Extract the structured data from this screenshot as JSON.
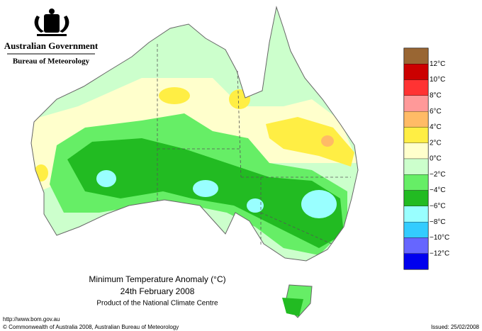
{
  "header": {
    "government": "Australian Government",
    "bureau": "Bureau of Meteorology"
  },
  "title": "Minimum Temperature Anomaly (°C)",
  "date": "24th February 2008",
  "product": "Product of the National Climate Centre",
  "legend": {
    "labels": [
      "12°C",
      "10°C",
      "8°C",
      "6°C",
      "4°C",
      "2°C",
      "0°C",
      "−2°C",
      "−4°C",
      "−6°C",
      "−8°C",
      "−10°C",
      "−12°C"
    ],
    "colors": [
      "#996633",
      "#cc0000",
      "#ff3333",
      "#ff9999",
      "#ffbb66",
      "#ffee44",
      "#ffffcc",
      "#ccffcc",
      "#66ee66",
      "#22bb22",
      "#99ffff",
      "#33ccff",
      "#6666ff",
      "#0000ee"
    ]
  },
  "footer": {
    "url": "http://www.bom.gov.au",
    "copyright": "© Commonwealth of Australia 2008, Australian Bureau of Meteorology",
    "issued": "Issued: 25/02/2008"
  }
}
